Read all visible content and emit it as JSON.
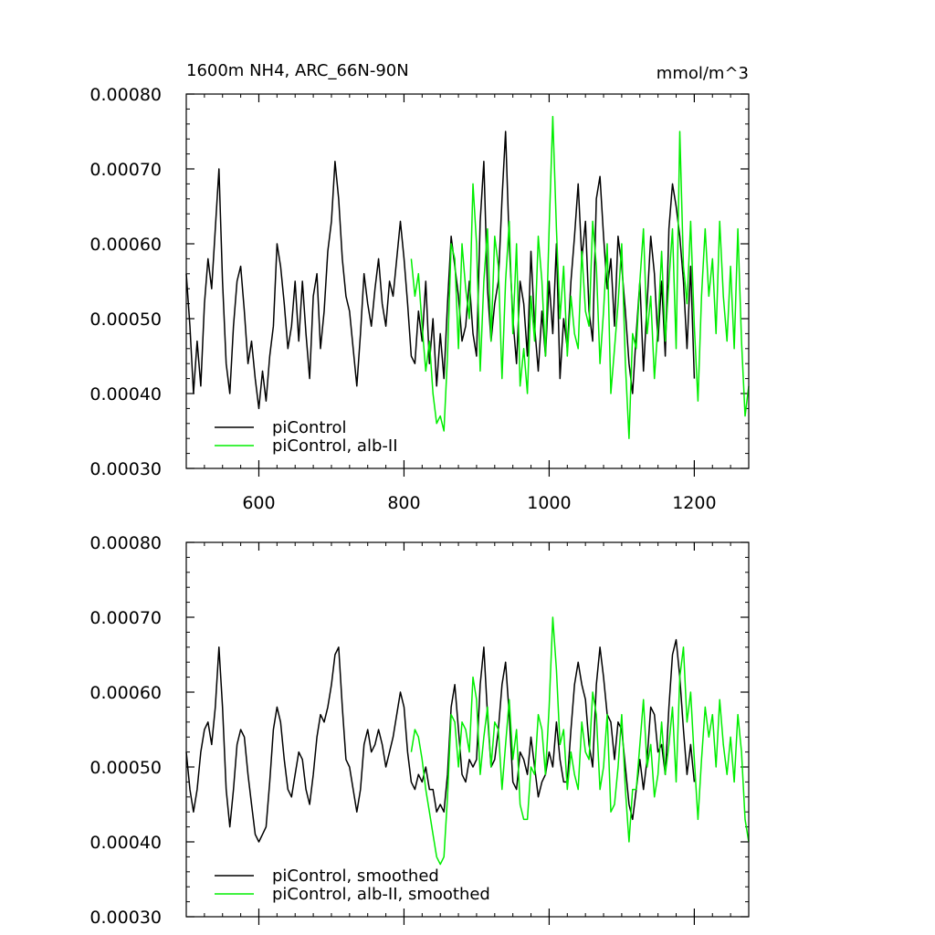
{
  "chart_data": [
    {
      "type": "line",
      "title": "1600m NH4, ARC_66N-90N",
      "units": "mmol/m^3",
      "xlim": [
        500,
        1275
      ],
      "ylim": [
        0.0003,
        0.0008
      ],
      "x_ticks": [
        600,
        800,
        1000,
        1200
      ],
      "x_tick_labels": [
        "600",
        "800",
        "1000",
        "1200"
      ],
      "y_ticks": [
        0.0003,
        0.0004,
        0.0005,
        0.0006,
        0.0007,
        0.0008
      ],
      "y_tick_labels": [
        "0.00030",
        "0.00040",
        "0.00050",
        "0.00060",
        "0.00070",
        "0.00080"
      ],
      "legend_position": "bottom-left",
      "grid": false,
      "series": [
        {
          "name": "piControl",
          "color": "#000000",
          "x": [
            500,
            505,
            510,
            515,
            520,
            525,
            530,
            535,
            540,
            545,
            550,
            555,
            560,
            565,
            570,
            575,
            580,
            585,
            590,
            595,
            600,
            605,
            610,
            615,
            620,
            625,
            630,
            635,
            640,
            645,
            650,
            655,
            660,
            665,
            670,
            675,
            680,
            685,
            690,
            695,
            700,
            705,
            710,
            715,
            720,
            725,
            730,
            735,
            740,
            745,
            750,
            755,
            760,
            765,
            770,
            775,
            780,
            785,
            790,
            795,
            800,
            805,
            810,
            815,
            820,
            825,
            830,
            835,
            840,
            845,
            850,
            855,
            860,
            865,
            870,
            875,
            880,
            885,
            890,
            895,
            900,
            905,
            910,
            915,
            920,
            925,
            930,
            935,
            940,
            945,
            950,
            955,
            960,
            965,
            970,
            975,
            980,
            985,
            990,
            995,
            1000,
            1005,
            1010,
            1015,
            1020,
            1025,
            1030,
            1035,
            1040,
            1045,
            1050,
            1055,
            1060,
            1065,
            1070,
            1075,
            1080,
            1085,
            1090,
            1095,
            1100,
            1105,
            1110,
            1115,
            1120,
            1125,
            1130,
            1135,
            1140,
            1145,
            1150,
            1155,
            1160,
            1165,
            1170,
            1175,
            1180,
            1185,
            1190,
            1195,
            1200
          ],
          "y": [
            0.00056,
            0.00049,
            0.0004,
            0.00047,
            0.00041,
            0.00052,
            0.00058,
            0.00054,
            0.00062,
            0.0007,
            0.00055,
            0.00044,
            0.0004,
            0.00049,
            0.00055,
            0.00057,
            0.00051,
            0.00044,
            0.00047,
            0.00042,
            0.00038,
            0.00043,
            0.00039,
            0.00045,
            0.00049,
            0.0006,
            0.00057,
            0.00052,
            0.00046,
            0.00049,
            0.00055,
            0.00047,
            0.00055,
            0.00048,
            0.00042,
            0.00053,
            0.00056,
            0.00046,
            0.00051,
            0.00059,
            0.00063,
            0.00071,
            0.00066,
            0.00058,
            0.00053,
            0.00051,
            0.00046,
            0.00041,
            0.00048,
            0.00056,
            0.00052,
            0.00049,
            0.00054,
            0.00058,
            0.00052,
            0.00049,
            0.00055,
            0.00053,
            0.00058,
            0.00063,
            0.00058,
            0.00052,
            0.00045,
            0.00044,
            0.00051,
            0.00047,
            0.00055,
            0.00044,
            0.0005,
            0.00041,
            0.00048,
            0.00042,
            0.00052,
            0.00061,
            0.00057,
            0.00053,
            0.00047,
            0.00049,
            0.00055,
            0.00048,
            0.00045,
            0.00063,
            0.00071,
            0.00054,
            0.00047,
            0.00052,
            0.00055,
            0.00066,
            0.00075,
            0.0006,
            0.0005,
            0.00044,
            0.00055,
            0.00052,
            0.00045,
            0.00059,
            0.00049,
            0.00043,
            0.00051,
            0.00045,
            0.00055,
            0.00048,
            0.0006,
            0.00042,
            0.0005,
            0.00046,
            0.00055,
            0.00061,
            0.00068,
            0.00058,
            0.00063,
            0.00051,
            0.00047,
            0.00066,
            0.00069,
            0.00061,
            0.00054,
            0.00058,
            0.00049,
            0.00061,
            0.00057,
            0.00051,
            0.00044,
            0.0004,
            0.00048,
            0.00055,
            0.00043,
            0.00052,
            0.00061,
            0.00056,
            0.00047,
            0.00055,
            0.00045,
            0.00062,
            0.00068,
            0.00065,
            0.00061,
            0.00055,
            0.00046,
            0.00057,
            0.00042
          ]
        },
        {
          "name": "piControl, alb-II",
          "color": "#00ee00",
          "x": [
            810,
            815,
            820,
            825,
            830,
            835,
            840,
            845,
            850,
            855,
            860,
            865,
            870,
            875,
            880,
            885,
            890,
            895,
            900,
            905,
            910,
            915,
            920,
            925,
            930,
            935,
            940,
            945,
            950,
            955,
            960,
            965,
            970,
            975,
            980,
            985,
            990,
            995,
            1000,
            1005,
            1010,
            1015,
            1020,
            1025,
            1030,
            1035,
            1040,
            1045,
            1050,
            1055,
            1060,
            1065,
            1070,
            1075,
            1080,
            1085,
            1090,
            1095,
            1100,
            1105,
            1110,
            1115,
            1120,
            1125,
            1130,
            1135,
            1140,
            1145,
            1150,
            1155,
            1160,
            1165,
            1170,
            1175,
            1180,
            1185,
            1190,
            1195,
            1200,
            1205,
            1210,
            1215,
            1220,
            1225,
            1230,
            1235,
            1240,
            1245,
            1250,
            1255,
            1260,
            1265,
            1270,
            1275
          ],
          "y": [
            0.00058,
            0.00053,
            0.00056,
            0.00049,
            0.00043,
            0.00047,
            0.0004,
            0.00036,
            0.00037,
            0.00035,
            0.00045,
            0.0006,
            0.00058,
            0.00046,
            0.0006,
            0.00054,
            0.0005,
            0.00068,
            0.0006,
            0.00043,
            0.00055,
            0.00062,
            0.00047,
            0.00061,
            0.00057,
            0.00042,
            0.00055,
            0.00063,
            0.00048,
            0.0006,
            0.00041,
            0.00046,
            0.0004,
            0.00053,
            0.00047,
            0.00061,
            0.00055,
            0.00045,
            0.00062,
            0.00077,
            0.00062,
            0.0005,
            0.00057,
            0.00045,
            0.00053,
            0.00048,
            0.00046,
            0.00059,
            0.00051,
            0.00049,
            0.00063,
            0.00057,
            0.00044,
            0.00051,
            0.0006,
            0.0004,
            0.00046,
            0.00052,
            0.0006,
            0.00044,
            0.00034,
            0.00048,
            0.00046,
            0.00055,
            0.00062,
            0.00048,
            0.00053,
            0.00042,
            0.00049,
            0.00059,
            0.00047,
            0.00055,
            0.00062,
            0.00046,
            0.00075,
            0.00057,
            0.00052,
            0.00063,
            0.00049,
            0.00039,
            0.00053,
            0.00062,
            0.00053,
            0.00058,
            0.00048,
            0.00063,
            0.00053,
            0.00047,
            0.00057,
            0.00046,
            0.00062,
            0.00047,
            0.00037,
            0.00041
          ]
        }
      ]
    },
    {
      "type": "line",
      "title": "",
      "xlim": [
        500,
        1275
      ],
      "ylim": [
        0.0003,
        0.0008
      ],
      "x_ticks": [
        600,
        800,
        1000,
        1200
      ],
      "y_ticks": [
        0.0003,
        0.0004,
        0.0005,
        0.0006,
        0.0007,
        0.0008
      ],
      "y_tick_labels": [
        "0.00030",
        "0.00040",
        "0.00050",
        "0.00060",
        "0.00070",
        "0.00080"
      ],
      "legend_position": "bottom-left",
      "grid": false,
      "series": [
        {
          "name": "piControl, smoothed",
          "color": "#000000",
          "x": [
            500,
            505,
            510,
            515,
            520,
            525,
            530,
            535,
            540,
            545,
            550,
            555,
            560,
            565,
            570,
            575,
            580,
            585,
            590,
            595,
            600,
            605,
            610,
            615,
            620,
            625,
            630,
            635,
            640,
            645,
            650,
            655,
            660,
            665,
            670,
            675,
            680,
            685,
            690,
            695,
            700,
            705,
            710,
            715,
            720,
            725,
            730,
            735,
            740,
            745,
            750,
            755,
            760,
            765,
            770,
            775,
            780,
            785,
            790,
            795,
            800,
            805,
            810,
            815,
            820,
            825,
            830,
            835,
            840,
            845,
            850,
            855,
            860,
            865,
            870,
            875,
            880,
            885,
            890,
            895,
            900,
            905,
            910,
            915,
            920,
            925,
            930,
            935,
            940,
            945,
            950,
            955,
            960,
            965,
            970,
            975,
            980,
            985,
            990,
            995,
            1000,
            1005,
            1010,
            1015,
            1020,
            1025,
            1030,
            1035,
            1040,
            1045,
            1050,
            1055,
            1060,
            1065,
            1070,
            1075,
            1080,
            1085,
            1090,
            1095,
            1100,
            1105,
            1110,
            1115,
            1120,
            1125,
            1130,
            1135,
            1140,
            1145,
            1150,
            1155,
            1160,
            1165,
            1170,
            1175,
            1180,
            1185,
            1190,
            1195,
            1200
          ],
          "y": [
            0.00052,
            0.00047,
            0.00044,
            0.00047,
            0.00052,
            0.00055,
            0.00056,
            0.00053,
            0.00058,
            0.00066,
            0.00058,
            0.00047,
            0.00042,
            0.00047,
            0.00053,
            0.00055,
            0.00054,
            0.00049,
            0.00045,
            0.00041,
            0.0004,
            0.00041,
            0.00042,
            0.00048,
            0.00055,
            0.00058,
            0.00056,
            0.00051,
            0.00047,
            0.00046,
            0.00049,
            0.00052,
            0.00051,
            0.00047,
            0.00045,
            0.00049,
            0.00054,
            0.00057,
            0.00056,
            0.00058,
            0.00061,
            0.00065,
            0.00066,
            0.00058,
            0.00051,
            0.0005,
            0.00047,
            0.00044,
            0.00047,
            0.00053,
            0.00055,
            0.00052,
            0.00053,
            0.00055,
            0.00053,
            0.0005,
            0.00052,
            0.00054,
            0.00057,
            0.0006,
            0.00058,
            0.00052,
            0.00048,
            0.00047,
            0.00049,
            0.00048,
            0.0005,
            0.00047,
            0.00047,
            0.00044,
            0.00045,
            0.00044,
            0.00049,
            0.00058,
            0.00061,
            0.00055,
            0.00049,
            0.00048,
            0.00051,
            0.0005,
            0.00051,
            0.00061,
            0.00066,
            0.00057,
            0.0005,
            0.00051,
            0.00055,
            0.00061,
            0.00064,
            0.00057,
            0.00048,
            0.00047,
            0.00052,
            0.00051,
            0.00049,
            0.00054,
            0.0005,
            0.00046,
            0.00048,
            0.00049,
            0.00052,
            0.0005,
            0.00056,
            0.00051,
            0.00048,
            0.00048,
            0.00055,
            0.00061,
            0.00064,
            0.00061,
            0.00059,
            0.00053,
            0.0005,
            0.00061,
            0.00066,
            0.00062,
            0.00057,
            0.00056,
            0.00051,
            0.00056,
            0.00055,
            0.0005,
            0.00045,
            0.00043,
            0.00047,
            0.00051,
            0.00047,
            0.00051,
            0.00058,
            0.00057,
            0.00052,
            0.00053,
            0.00049,
            0.00058,
            0.00065,
            0.00067,
            0.00062,
            0.00055,
            0.00049,
            0.00053,
            0.00048
          ]
        },
        {
          "name": "piControl, alb-II, smoothed",
          "color": "#00ee00",
          "x": [
            810,
            815,
            820,
            825,
            830,
            835,
            840,
            845,
            850,
            855,
            860,
            865,
            870,
            875,
            880,
            885,
            890,
            895,
            900,
            905,
            910,
            915,
            920,
            925,
            930,
            935,
            940,
            945,
            950,
            955,
            960,
            965,
            970,
            975,
            980,
            985,
            990,
            995,
            1000,
            1005,
            1010,
            1015,
            1020,
            1025,
            1030,
            1035,
            1040,
            1045,
            1050,
            1055,
            1060,
            1065,
            1070,
            1075,
            1080,
            1085,
            1090,
            1095,
            1100,
            1105,
            1110,
            1115,
            1120,
            1125,
            1130,
            1135,
            1140,
            1145,
            1150,
            1155,
            1160,
            1165,
            1170,
            1175,
            1180,
            1185,
            1190,
            1195,
            1200,
            1205,
            1210,
            1215,
            1220,
            1225,
            1230,
            1235,
            1240,
            1245,
            1250,
            1255,
            1260,
            1265,
            1270,
            1275
          ],
          "y": [
            0.00052,
            0.00055,
            0.00054,
            0.00051,
            0.00047,
            0.00044,
            0.00041,
            0.00038,
            0.00037,
            0.00038,
            0.00046,
            0.00057,
            0.00056,
            0.0005,
            0.00056,
            0.00055,
            0.00052,
            0.00062,
            0.00059,
            0.00049,
            0.00054,
            0.00058,
            0.0005,
            0.00056,
            0.00055,
            0.00047,
            0.00053,
            0.00059,
            0.00051,
            0.00055,
            0.00045,
            0.00043,
            0.00043,
            0.0005,
            0.00049,
            0.00057,
            0.00055,
            0.00049,
            0.00058,
            0.0007,
            0.00063,
            0.00053,
            0.00055,
            0.00047,
            0.00052,
            0.00049,
            0.00047,
            0.00056,
            0.00052,
            0.00051,
            0.0006,
            0.00057,
            0.00047,
            0.0005,
            0.00057,
            0.00044,
            0.00045,
            0.0005,
            0.00057,
            0.00047,
            0.0004,
            0.00047,
            0.00047,
            0.00053,
            0.00059,
            0.0005,
            0.00053,
            0.00046,
            0.00049,
            0.00056,
            0.00049,
            0.00053,
            0.00058,
            0.00048,
            0.00062,
            0.00066,
            0.00056,
            0.0006,
            0.00051,
            0.00043,
            0.00051,
            0.00058,
            0.00054,
            0.00057,
            0.0005,
            0.00059,
            0.00053,
            0.00049,
            0.00054,
            0.00048,
            0.00057,
            0.00052,
            0.00043,
            0.0004
          ]
        }
      ]
    }
  ]
}
